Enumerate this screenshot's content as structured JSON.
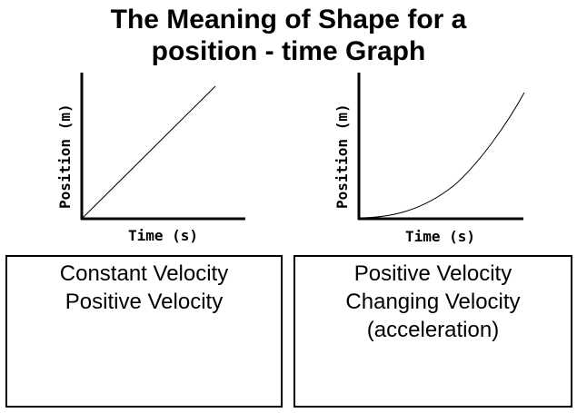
{
  "title": {
    "line1": "The Meaning of Shape for a",
    "line2": "position - time Graph"
  },
  "graphs": [
    {
      "ylabel": "Position (m)",
      "xlabel": "Time (s)",
      "curve": "straight line"
    },
    {
      "ylabel": "Position (m)",
      "xlabel": "Time (s)",
      "curve": "upward curve"
    }
  ],
  "boxes": [
    {
      "lines": [
        "Constant Velocity",
        "Positive Velocity"
      ]
    },
    {
      "lines": [
        "Positive Velocity",
        "Changing Velocity",
        "(acceleration)"
      ]
    }
  ]
}
